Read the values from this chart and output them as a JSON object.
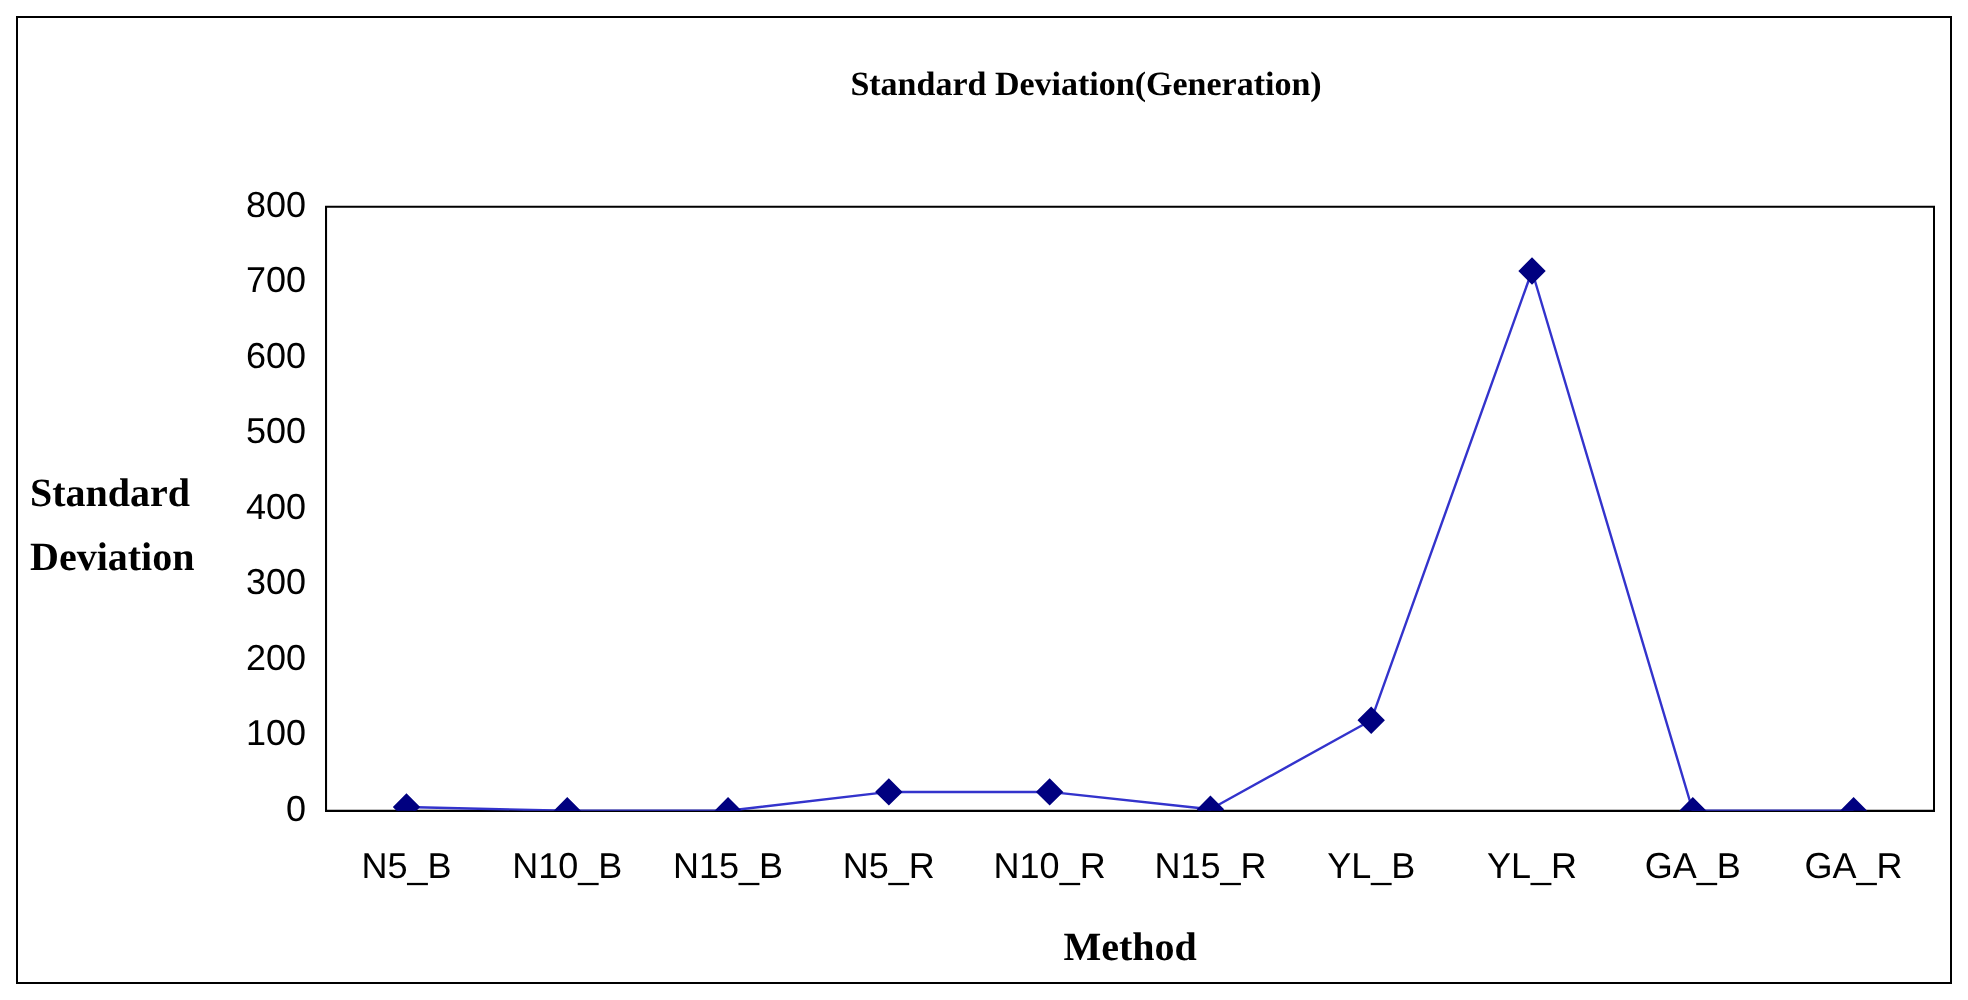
{
  "chart_data": {
    "type": "line",
    "title": "Standard Deviation(Generation)",
    "xlabel": "Method",
    "ylabel": "Standard Deviation",
    "categories": [
      "N5_B",
      "N10_B",
      "N15_B",
      "N5_R",
      "N10_R",
      "N15_R",
      "YL_B",
      "YL_R",
      "GA_B",
      "GA_R"
    ],
    "series": [
      {
        "color": "#000080",
        "values": [
          5,
          0,
          0,
          25,
          25,
          2,
          120,
          715,
          0,
          0
        ]
      }
    ],
    "ylim": [
      0,
      800
    ],
    "yticks": [
      0,
      100,
      200,
      300,
      400,
      500,
      600,
      700,
      800
    ],
    "grid": false,
    "legend": false,
    "marker": "diamond",
    "line_style": "solid"
  }
}
